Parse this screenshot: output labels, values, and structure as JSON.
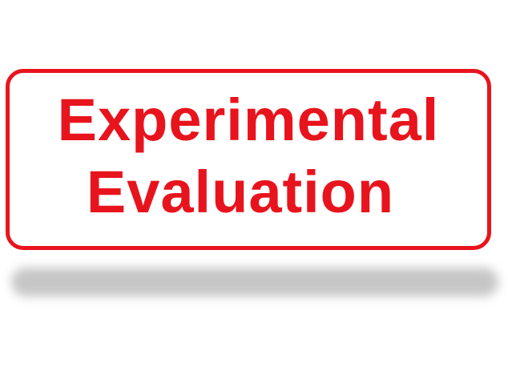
{
  "sign": {
    "line1": "Experimental",
    "line2": "Evaluation",
    "color": "#e8141d"
  }
}
